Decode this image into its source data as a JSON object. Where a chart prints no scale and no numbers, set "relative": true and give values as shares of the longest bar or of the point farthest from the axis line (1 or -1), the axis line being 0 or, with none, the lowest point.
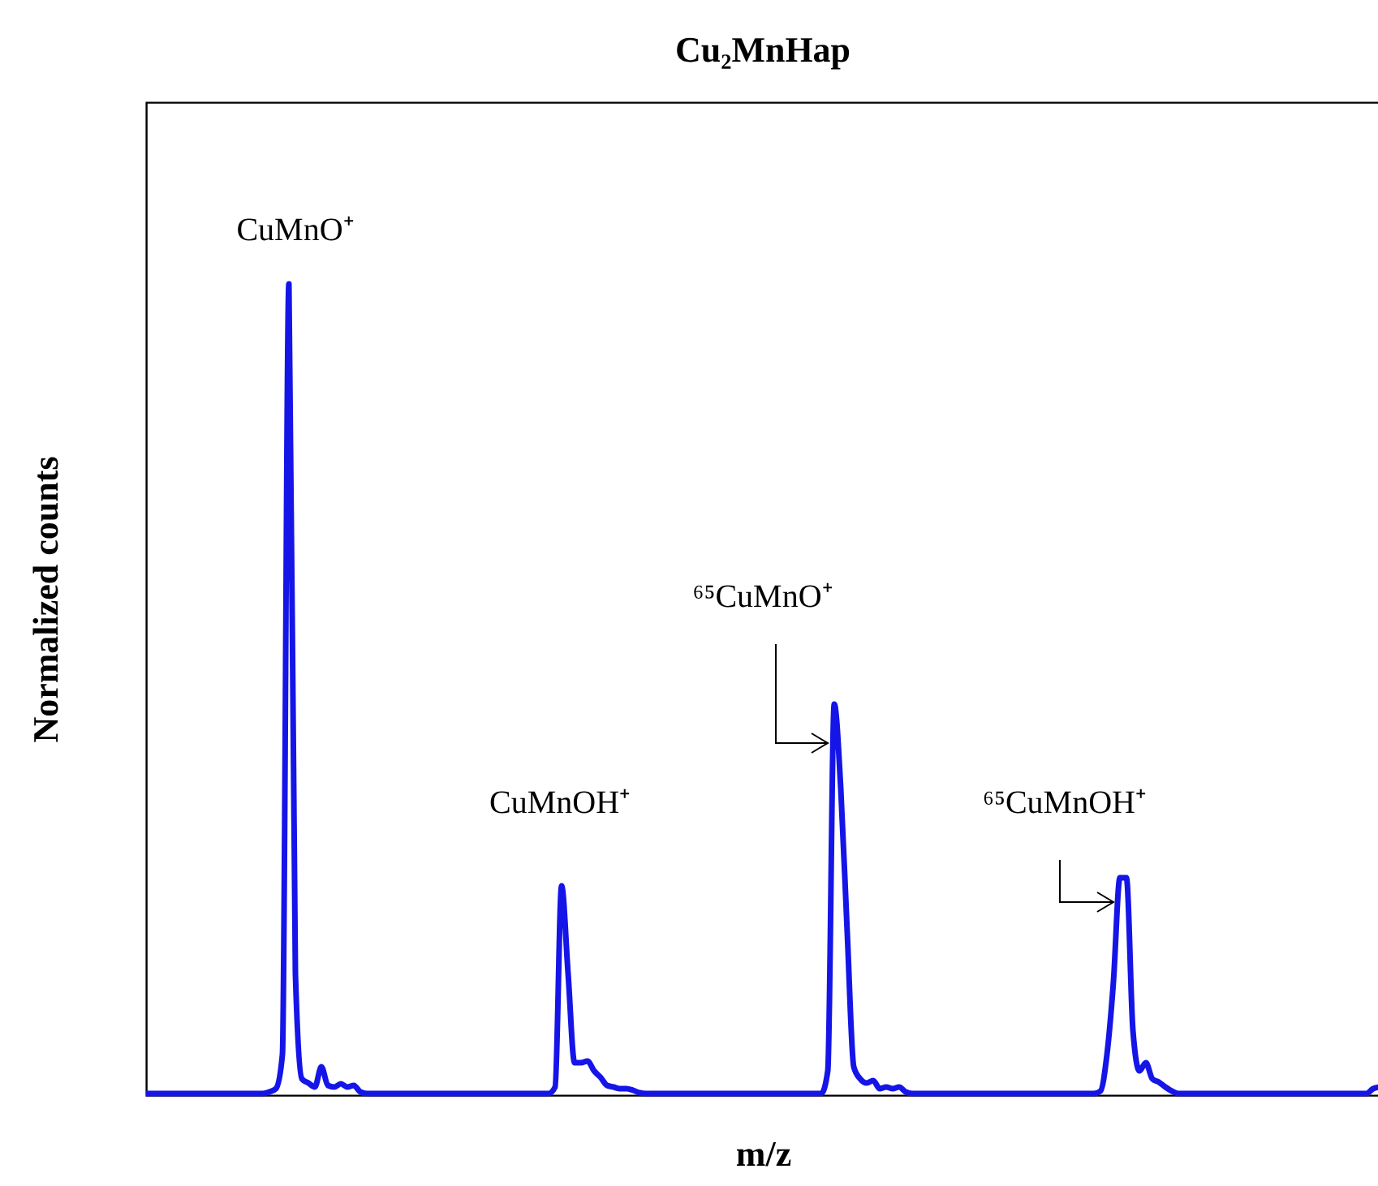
{
  "chart_data": {
    "type": "line",
    "title": "Cu₂MnHap",
    "xlabel": "m/z",
    "ylabel": "Normalized counts",
    "relative": true,
    "categories": [
      null,
      null,
      null,
      null,
      null,
      null,
      null,
      null,
      null,
      null,
      null,
      null,
      null,
      null,
      null,
      null,
      null,
      null,
      null,
      null,
      null,
      null,
      null,
      null,
      null,
      null,
      null,
      null,
      null,
      null,
      null,
      null,
      null,
      null,
      null,
      null,
      null,
      null,
      null,
      null,
      null,
      null,
      null,
      null,
      null,
      null,
      null,
      null,
      null,
      null,
      null,
      null,
      null,
      null,
      null,
      null,
      null,
      null,
      null,
      null,
      null,
      null,
      null,
      null,
      null,
      null,
      null,
      null,
      null,
      null,
      null,
      null,
      null,
      null,
      null,
      null,
      null,
      null,
      null,
      null,
      null,
      null,
      null,
      null,
      null,
      null,
      null,
      null,
      null,
      null,
      null,
      null,
      null,
      null,
      null,
      null,
      null,
      null,
      null,
      null,
      null,
      null,
      null,
      null,
      null,
      null,
      null,
      null,
      null,
      null,
      null,
      null,
      null,
      null,
      null,
      null,
      null,
      null,
      null,
      null,
      null,
      null,
      null,
      null,
      null,
      null,
      null,
      null,
      null,
      null,
      null,
      null,
      null,
      null,
      null,
      null,
      null,
      null,
      null,
      null,
      null,
      null,
      null,
      null,
      null,
      null,
      null,
      null,
      null,
      null,
      null,
      null,
      null,
      null,
      null,
      null,
      null,
      null,
      null,
      null,
      null,
      null,
      null,
      null,
      null,
      null,
      null,
      null,
      null,
      null,
      null,
      null,
      null,
      null,
      null,
      null,
      null,
      null,
      null,
      null,
      null,
      null,
      null,
      null,
      null,
      null,
      null,
      null,
      null,
      null,
      null
    ],
    "series": [
      {
        "color": "#1515e8",
        "values": [
          0.002,
          0.002,
          0.002,
          0.002,
          0.002,
          0.002,
          0.002,
          0.002,
          0.002,
          0.002,
          0.002,
          0.002,
          0.002,
          0.002,
          0.002,
          0.002,
          0.002,
          0.002,
          0.002,
          0.004,
          0.008,
          0.05,
          1,
          0.15,
          0.02,
          0.015,
          0.01,
          0.035,
          0.012,
          0.01,
          0.014,
          0.01,
          0.012,
          0.004,
          0.002,
          0.002,
          0.002,
          0.002,
          0.002,
          0.002,
          0.002,
          0.002,
          0.002,
          0.002,
          0.002,
          0.002,
          0.002,
          0.002,
          0.002,
          0.002,
          0.002,
          0.002,
          0.002,
          0.002,
          0.002,
          0.002,
          0.002,
          0.002,
          0.002,
          0.002,
          0.002,
          0.002,
          0.002,
          0.01,
          0.258,
          0.15,
          0.04,
          0.04,
          0.042,
          0.03,
          0.022,
          0.012,
          0.01,
          0.008,
          0.008,
          0.006,
          0.003,
          0.002,
          0.002,
          0.002,
          0.002,
          0.002,
          0.002,
          0.002,
          0.002,
          0.002,
          0.002,
          0.002,
          0.002,
          0.002,
          0.002,
          0.002,
          0.002,
          0.002,
          0.002,
          0.002,
          0.002,
          0.002,
          0.002,
          0.002,
          0.002,
          0.002,
          0.002,
          0.002,
          0.002,
          0.03,
          0.482,
          0.378,
          0.2,
          0.035,
          0.02,
          0.015,
          0.018,
          0.008,
          0.01,
          0.008,
          0.01,
          0.004,
          0.002,
          0.002,
          0.002,
          0.002,
          0.002,
          0.002,
          0.002,
          0.002,
          0.002,
          0.002,
          0.002,
          0.002,
          0.002,
          0.002,
          0.002,
          0.002,
          0.002,
          0.002,
          0.002,
          0.002,
          0.002,
          0.002,
          0.002,
          0.002,
          0.002,
          0.002,
          0.002,
          0.002,
          0.002,
          0.005,
          0.05,
          0.14,
          0.268,
          0.268,
          0.08,
          0.03,
          0.04,
          0.02,
          0.016,
          0.01,
          0.005,
          0.002,
          0.002,
          0.002,
          0.002,
          0.002,
          0.002,
          0.002,
          0.002,
          0.002,
          0.002,
          0.002,
          0.002,
          0.002,
          0.002,
          0.002,
          0.002,
          0.002,
          0.002,
          0.002,
          0.002,
          0.002,
          0.002,
          0.002,
          0.002,
          0.002,
          0.002,
          0.002,
          0.002,
          0.002,
          0.002,
          0.008,
          0.01
        ]
      }
    ],
    "annotations": [
      "CuMnO⁺",
      "CuMnOH⁺",
      "⁶⁵CuMnO⁺",
      "⁶⁵CuMnOH⁺"
    ]
  }
}
